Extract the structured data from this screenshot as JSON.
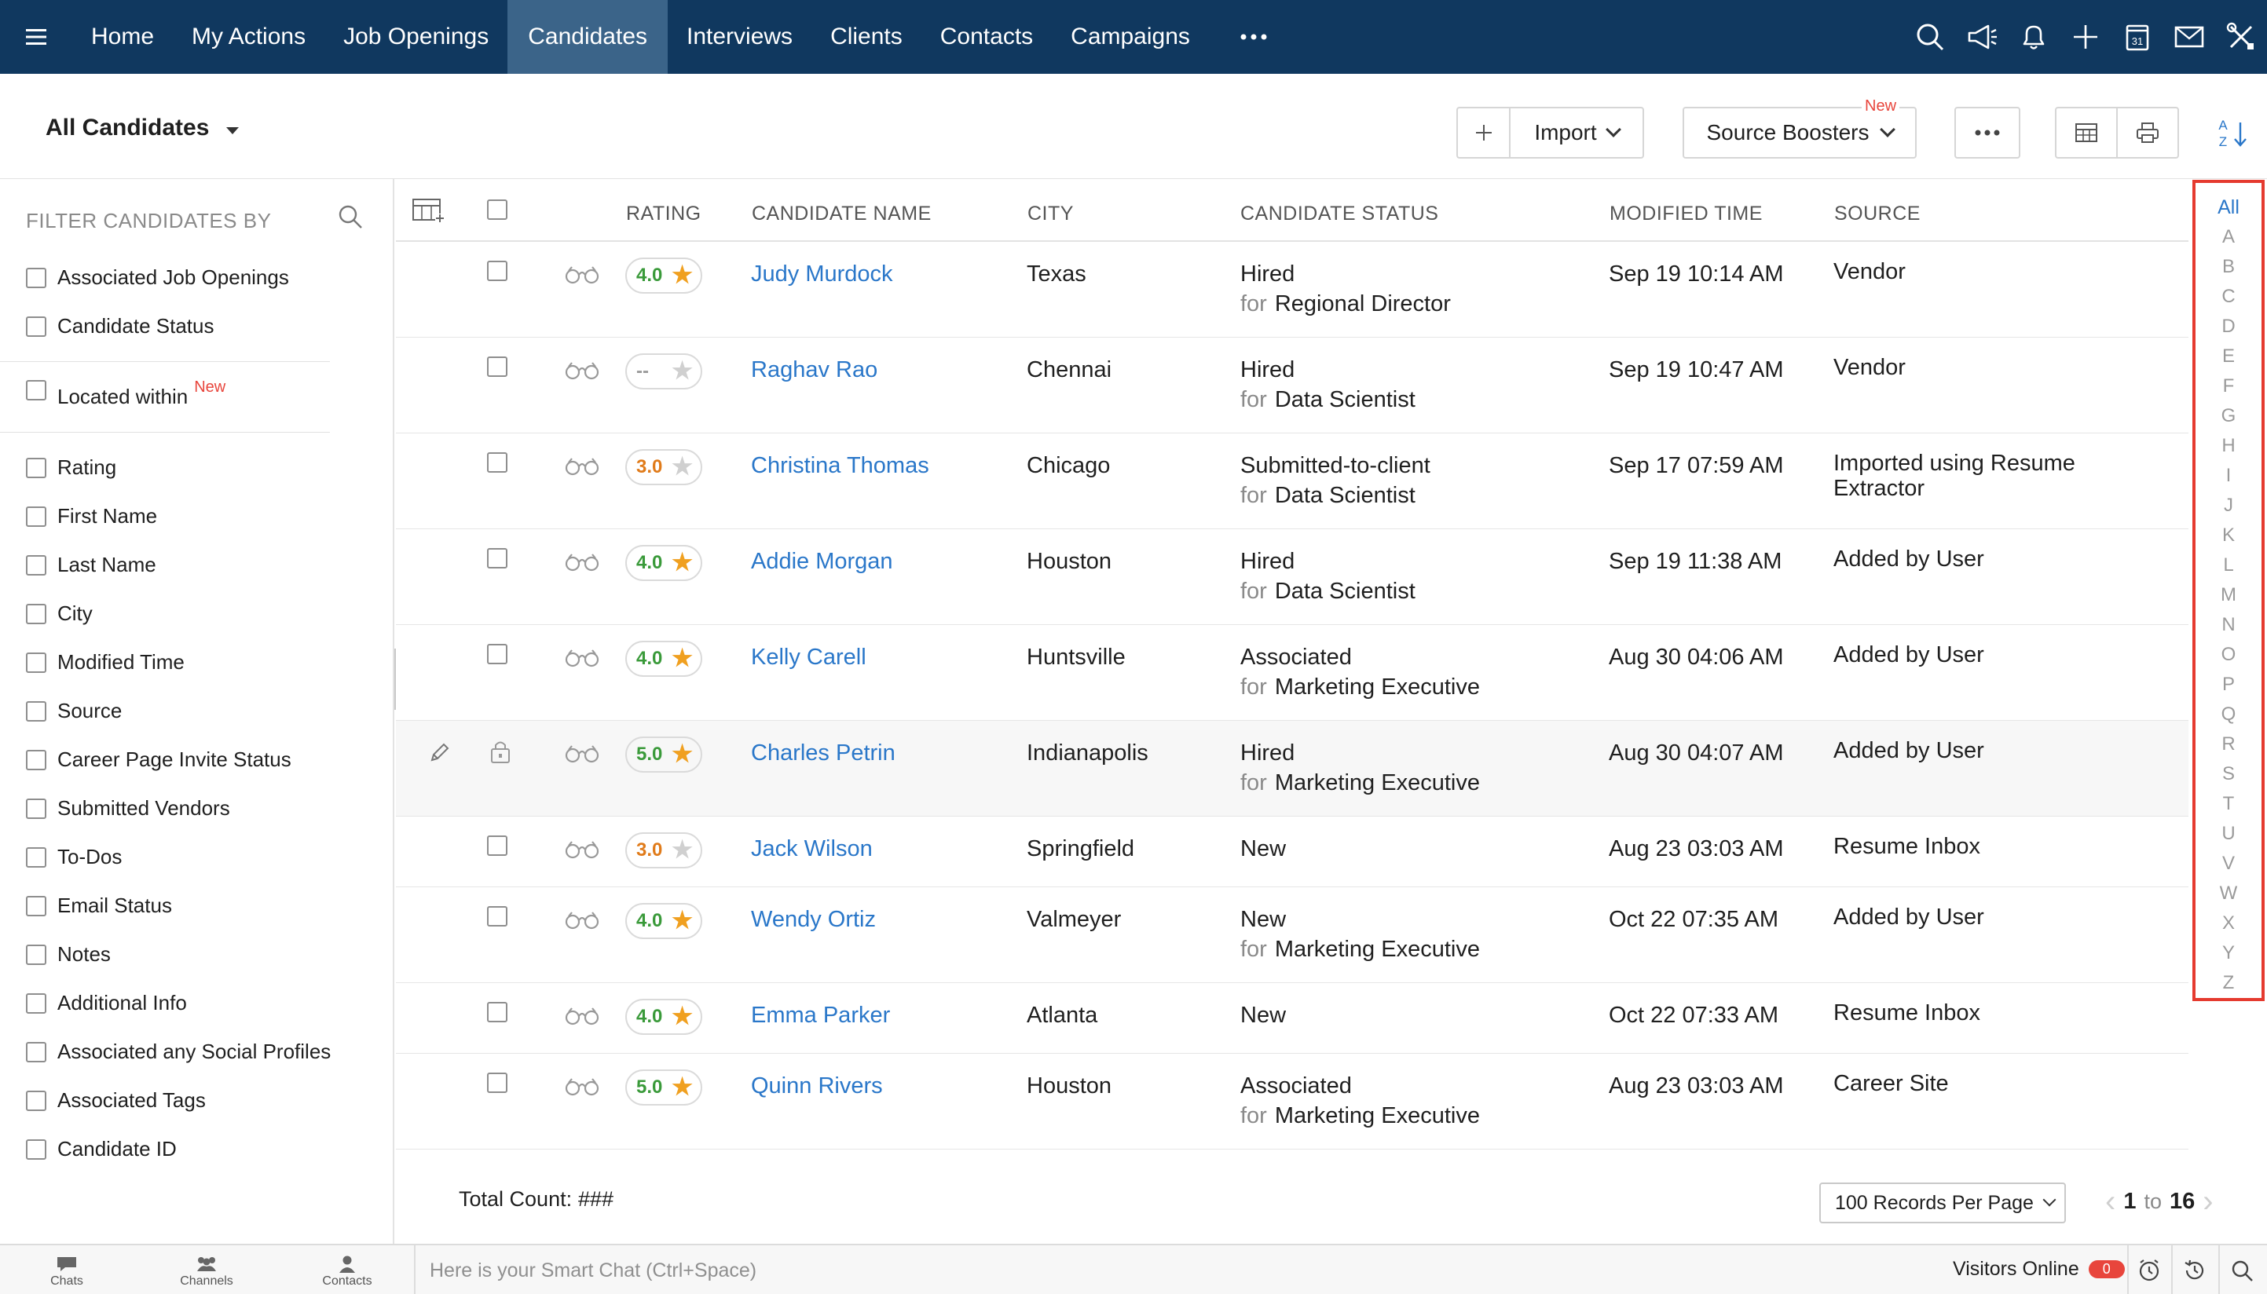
{
  "nav": {
    "items": [
      "Home",
      "My Actions",
      "Job Openings",
      "Candidates",
      "Interviews",
      "Clients",
      "Contacts",
      "Campaigns"
    ],
    "active": "Candidates",
    "icons": [
      "search-icon",
      "megaphone-icon",
      "bell-icon",
      "plus-icon",
      "calendar-icon",
      "mail-icon",
      "tools-icon"
    ],
    "calendar_day": "31"
  },
  "toolbar": {
    "view_label": "All Candidates",
    "import_label": "Import",
    "source_boosters_label": "Source Boosters",
    "new_tag": "New",
    "sort_top": "A",
    "sort_bottom": "Z"
  },
  "filters": {
    "title": "FILTER CANDIDATES BY",
    "group1": [
      "Associated Job Openings",
      "Candidate Status"
    ],
    "located_within": "Located within",
    "located_new": "New",
    "group2": [
      "Rating",
      "First Name",
      "Last Name",
      "City",
      "Modified Time",
      "Source",
      "Career Page Invite Status",
      "Submitted Vendors",
      "To-Dos",
      "Email Status",
      "Notes",
      "Additional Info",
      "Associated any Social Profiles",
      "Associated Tags",
      "Candidate ID"
    ]
  },
  "columns": [
    "RATING",
    "CANDIDATE NAME",
    "CITY",
    "CANDIDATE STATUS",
    "MODIFIED TIME",
    "SOURCE"
  ],
  "for_label": "for",
  "rows": [
    {
      "rating": "4.0",
      "filled": true,
      "name": "Judy Murdock",
      "city": "Texas",
      "status": "Hired",
      "job": "Regional Director",
      "modified": "Sep 19 10:14 AM",
      "source": "Vendor"
    },
    {
      "rating": "--",
      "filled": false,
      "name": "Raghav Rao",
      "city": "Chennai",
      "status": "Hired",
      "job": "Data Scientist",
      "modified": "Sep 19 10:47 AM",
      "source": "Vendor"
    },
    {
      "rating": "3.0",
      "filled": false,
      "name": "Christina Thomas",
      "city": "Chicago",
      "status": "Submitted-to-client",
      "job": "Data Scientist",
      "modified": "Sep 17 07:59 AM",
      "source": "Imported using Resume Extractor"
    },
    {
      "rating": "4.0",
      "filled": true,
      "name": "Addie Morgan",
      "city": "Houston",
      "status": "Hired",
      "job": "Data Scientist",
      "modified": "Sep 19 11:38 AM",
      "source": "Added by User"
    },
    {
      "rating": "4.0",
      "filled": true,
      "name": "Kelly Carell",
      "city": "Huntsville",
      "status": "Associated",
      "job": "Marketing Executive",
      "modified": "Aug 30 04:06 AM",
      "source": "Added by User"
    },
    {
      "rating": "5.0",
      "filled": true,
      "name": "Charles Petrin",
      "city": "Indianapolis",
      "status": "Hired",
      "job": "Marketing Executive",
      "modified": "Aug 30 04:07 AM",
      "source": "Added by User"
    },
    {
      "rating": "3.0",
      "filled": false,
      "name": "Jack Wilson",
      "city": "Springfield",
      "status": "New",
      "job": "",
      "modified": "Aug 23 03:03 AM",
      "source": "Resume Inbox"
    },
    {
      "rating": "4.0",
      "filled": true,
      "name": "Wendy Ortiz",
      "city": "Valmeyer",
      "status": "New",
      "job": "Marketing Executive",
      "modified": "Oct 22 07:35 AM",
      "source": "Added by User"
    },
    {
      "rating": "4.0",
      "filled": true,
      "name": "Emma Parker",
      "city": "Atlanta",
      "status": "New",
      "job": "",
      "modified": "Oct 22 07:33 AM",
      "source": "Resume Inbox"
    },
    {
      "rating": "5.0",
      "filled": true,
      "name": "Quinn Rivers",
      "city": "Houston",
      "status": "Associated",
      "job": "Marketing Executive",
      "modified": "Aug 23 03:03 AM",
      "source": "Career Site"
    }
  ],
  "rating_colors": {
    "3.0": "#e07b1a",
    "4.0": "#3a9a3a",
    "5.0": "#3a9a3a",
    "--": "#9a9a9a"
  },
  "star_colors": {
    "filled": "#f0a020",
    "empty": "#d0d0d0"
  },
  "alphabet": [
    "All",
    "A",
    "B",
    "C",
    "D",
    "E",
    "F",
    "G",
    "H",
    "I",
    "J",
    "K",
    "L",
    "M",
    "N",
    "O",
    "P",
    "Q",
    "R",
    "S",
    "T",
    "U",
    "V",
    "W",
    "X",
    "Y",
    "Z"
  ],
  "footer": {
    "total_label": "Total Count:",
    "total_value": "###",
    "per_page": "100 Records Per Page",
    "page_from": "1",
    "page_to_label": "to",
    "page_to": "16"
  },
  "bottombar": {
    "tabs": [
      "Chats",
      "Channels",
      "Contacts"
    ],
    "smart_chat_placeholder": "Here is your Smart Chat (Ctrl+Space)",
    "visitors_label": "Visitors Online",
    "visitors_count": "0"
  },
  "colors": {
    "nav_bg": "#10385f",
    "nav_active": "#3b6489",
    "link": "#2a77c9",
    "highlight_border": "#e53a2f"
  }
}
